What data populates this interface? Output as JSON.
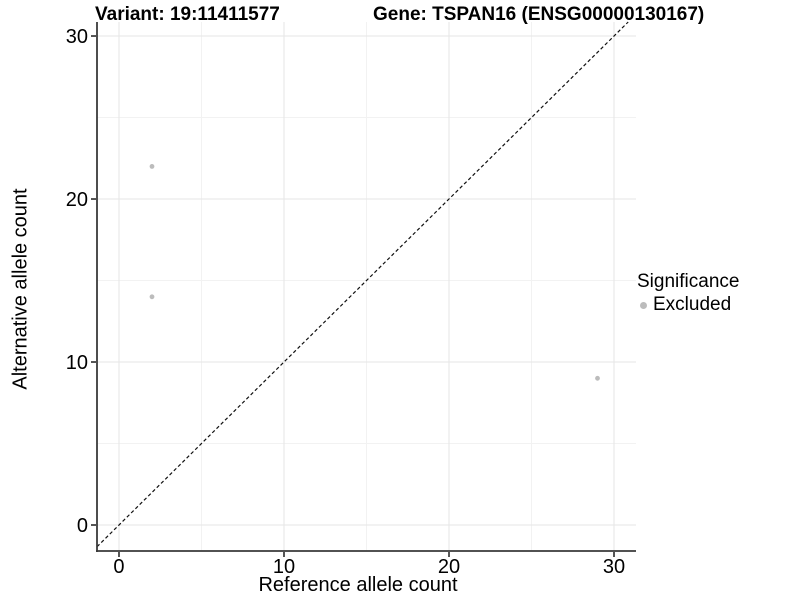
{
  "titles": {
    "left": "Variant: 19:11411577",
    "right": "Gene: TSPAN16 (ENSG00000130167)"
  },
  "axes": {
    "x": {
      "label": "Reference allele count"
    },
    "y": {
      "label": "Alternative allele count"
    }
  },
  "legend": {
    "title": "Significance",
    "items": [
      {
        "label": "Excluded",
        "color": "#bcbcbc"
      }
    ]
  },
  "colors": {
    "point": "#bcbcbc",
    "grid_major": "#e6e6e6",
    "grid_minor": "#f2f2f2",
    "axis_line": "#3a3a3a",
    "tick": "#2b2b2b",
    "reference_line": "#111111",
    "text": "#000000"
  },
  "chart_data": {
    "type": "scatter",
    "title": "Variant: 19:11411577 — Gene: TSPAN16 (ENSG00000130167)",
    "xlabel": "Reference allele count",
    "ylabel": "Alternative allele count",
    "xlim": [
      0,
      30
    ],
    "ylim": [
      0,
      30
    ],
    "x_ticks": [
      0,
      10,
      20,
      30
    ],
    "y_ticks": [
      0,
      10,
      20,
      30
    ],
    "x_minor_ticks": [
      5,
      15,
      25
    ],
    "y_minor_ticks": [
      5,
      15,
      25
    ],
    "grid": true,
    "legend_position": "right",
    "series": [
      {
        "name": "Excluded",
        "color": "#bcbcbc",
        "points": [
          [
            2,
            22
          ],
          [
            2,
            14
          ],
          [
            29,
            9
          ]
        ]
      }
    ],
    "reference_line": {
      "type": "identity",
      "slope": 1,
      "intercept": 0,
      "style": "dashed",
      "color": "#111111"
    }
  }
}
